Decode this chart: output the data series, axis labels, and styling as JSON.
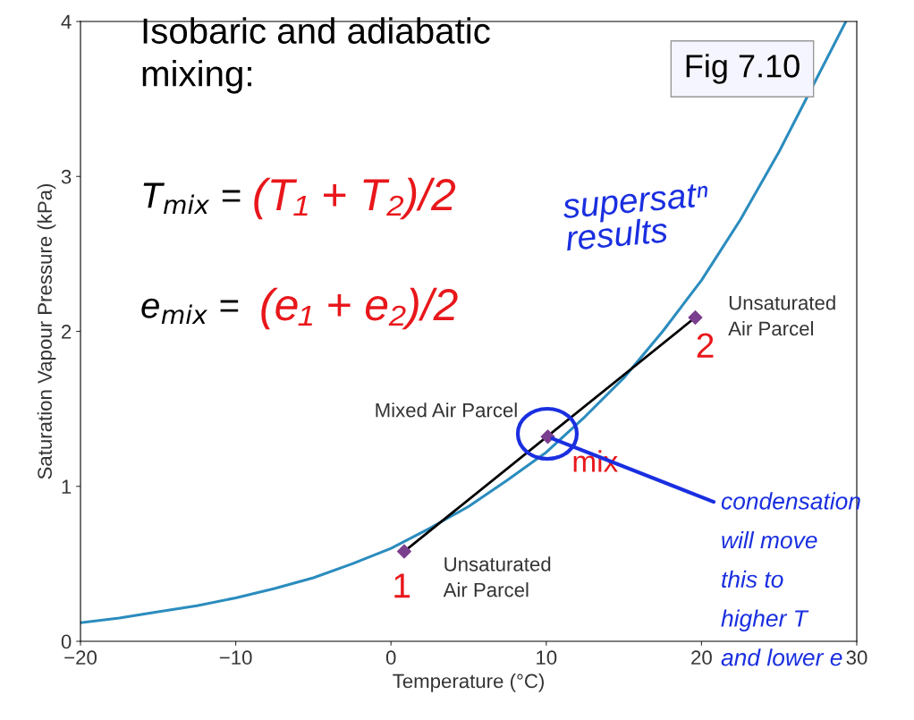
{
  "chart_data": {
    "type": "line",
    "xlabel": "Temperature (°C)",
    "ylabel": "Saturation Vapour Pressure (kPa)",
    "xlim": [
      -20,
      30
    ],
    "ylim": [
      0,
      4
    ],
    "xticks": [
      -20,
      -10,
      0,
      10,
      20,
      30
    ],
    "yticks": [
      0,
      1,
      2,
      3,
      4
    ],
    "grid": false,
    "legend": false,
    "series": [
      {
        "color": "#2b8cbe",
        "x": [
          -20,
          -17.5,
          -15,
          -12.5,
          -10,
          -7.5,
          -5,
          -2.5,
          0,
          2.5,
          5,
          7.5,
          10,
          12.5,
          15,
          17.5,
          20,
          22.5,
          25,
          29.3
        ],
        "values": [
          0.12,
          0.15,
          0.19,
          0.23,
          0.28,
          0.34,
          0.41,
          0.5,
          0.6,
          0.73,
          0.87,
          1.04,
          1.22,
          1.45,
          1.7,
          2.0,
          2.33,
          2.72,
          3.16,
          4.0
        ]
      },
      {
        "color": "#000000",
        "x": [
          0.85,
          19.6
        ],
        "values": [
          0.58,
          2.09
        ]
      },
      {
        "type": "scatter",
        "color": "#7b3f8f",
        "marker": "diamond",
        "x": [
          0.85,
          10.1,
          19.6
        ],
        "values": [
          0.58,
          1.32,
          2.09
        ]
      }
    ],
    "annotations": [
      "Isobaric and adiabatic\nmixing:",
      "T$_{mix}$ =",
      "e$_{mix}$ =",
      "(T₁ + T₂)/2",
      "(e₁ + e₂)/2",
      "supersatⁿ\nresults",
      "Fig 7.10",
      {
        "text": "Unsaturated\nAir Parcel",
        "x": 0.85,
        "y": 0.58
      },
      {
        "text": "1",
        "x": 0.85,
        "y": 0.58
      },
      {
        "text": "Mixed Air Parcel",
        "x": 10.1,
        "y": 1.32
      },
      {
        "text": "mix",
        "x": 10.1,
        "y": 1.32
      },
      {
        "text": "Unsaturated\nAir Parcel",
        "x": 19.6,
        "y": 2.09
      },
      {
        "text": "2",
        "x": 19.6,
        "y": 2.09
      },
      {
        "text": "condensation\nwill move\nthis to\nhigher T\nand lower e",
        "x": 10.1,
        "y": 1.32
      }
    ]
  }
}
